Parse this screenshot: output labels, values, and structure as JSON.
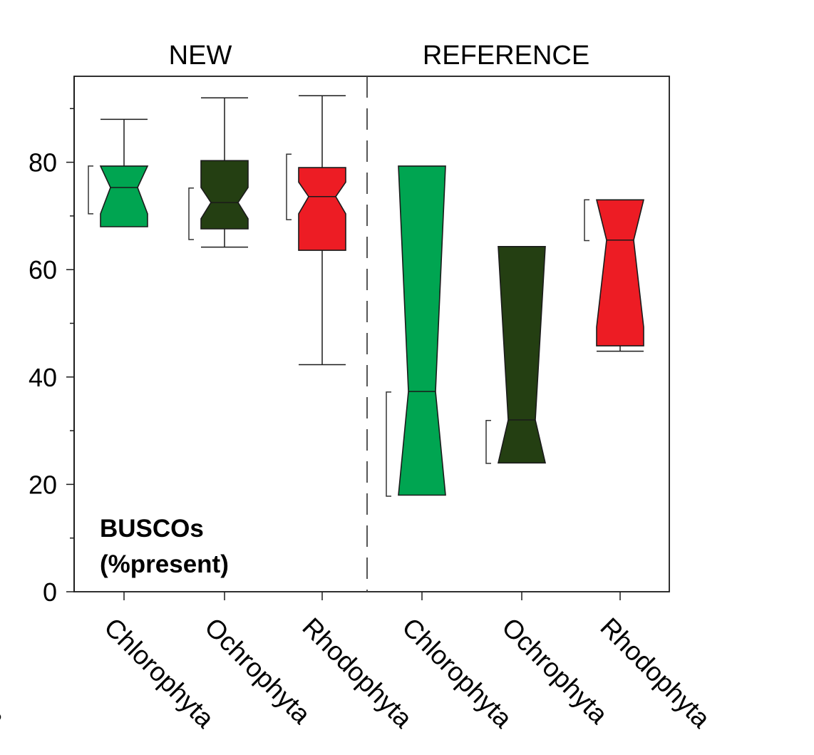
{
  "chart_data": {
    "type": "box",
    "title": "",
    "groups": [
      {
        "name": "NEW",
        "categories": [
          0,
          1,
          2
        ]
      },
      {
        "name": "REFERENCE",
        "categories": [
          3,
          4,
          5
        ]
      }
    ],
    "categories": [
      "Chlorophyta",
      "Ochrophyta",
      "Rhodophyta",
      "Chlorophyta",
      "Ochrophyta",
      "Rhodophyta"
    ],
    "partial_left_label": "ta",
    "ylabel": "BUSCOs",
    "ylabel_line2": "(%present)",
    "ylim": [
      0,
      90
    ],
    "yticks": [
      0,
      20,
      40,
      60,
      80
    ],
    "grid": false,
    "boxes": [
      {
        "group": "NEW",
        "category": "Chlorophyta",
        "color": "#00a551",
        "whisker_low": 68,
        "q1": 68,
        "median": 75.3,
        "q3": 79.3,
        "whisker_high": 88,
        "notch_low": 70.4,
        "notch_high": 79.3,
        "ci_low": 70.4,
        "ci_high": 79.3
      },
      {
        "group": "NEW",
        "category": "Ochrophyta",
        "color": "#243f12",
        "whisker_low": 64.2,
        "q1": 67.6,
        "median": 72.5,
        "q3": 80.3,
        "whisker_high": 92,
        "notch_low": 69.5,
        "notch_high": 75.3,
        "ci_low": 65.6,
        "ci_high": 75.2
      },
      {
        "group": "NEW",
        "category": "Rhodophyta",
        "color": "#ed1c24",
        "whisker_low": 42.3,
        "q1": 63.6,
        "median": 73.6,
        "q3": 79,
        "whisker_high": 92.4,
        "notch_low": 70.4,
        "notch_high": 76.3,
        "ci_low": 69.3,
        "ci_high": 81.5
      },
      {
        "group": "REFERENCE",
        "category": "Chlorophyta",
        "color": "#00a551",
        "whisker_low": 18,
        "q1": 18,
        "median": 37.3,
        "q3": 79.3,
        "whisker_high": 79.3,
        "notch_low": 18,
        "notch_high": 79.3,
        "ci_low": 17.8,
        "ci_high": 37.2
      },
      {
        "group": "REFERENCE",
        "category": "Ochrophyta",
        "color": "#243f12",
        "whisker_low": 24,
        "q1": 24,
        "median": 32,
        "q3": 64.3,
        "whisker_high": 64.3,
        "notch_low": 24,
        "notch_high": 64.3,
        "ci_low": 23.9,
        "ci_high": 31.9
      },
      {
        "group": "REFERENCE",
        "category": "Rhodophyta",
        "color": "#ed1c24",
        "whisker_low": 44.8,
        "q1": 45.8,
        "median": 65.5,
        "q3": 73,
        "whisker_high": 73,
        "notch_low": 49.3,
        "notch_high": 73,
        "ci_low": 65.4,
        "ci_high": 73
      }
    ]
  }
}
